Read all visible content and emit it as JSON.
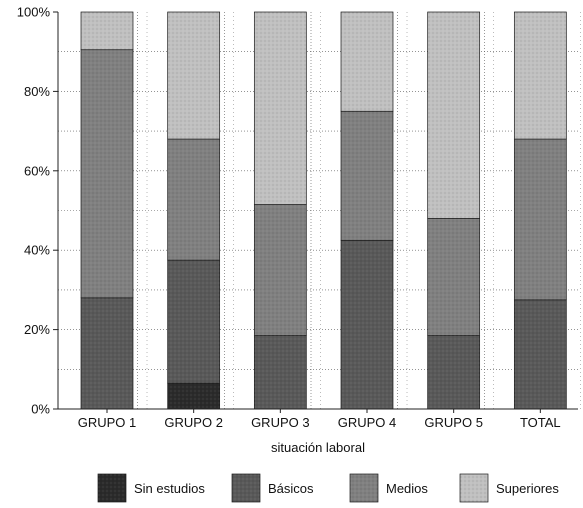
{
  "chart_data": {
    "type": "bar",
    "stacked": true,
    "percent_stacked": true,
    "title": "",
    "xlabel": "situación laboral",
    "ylabel": "",
    "categories": [
      "GRUPO 1",
      "GRUPO 2",
      "GRUPO 3",
      "GRUPO 4",
      "GRUPO 5",
      "TOTAL"
    ],
    "ylim": [
      0,
      100
    ],
    "y_ticks": [
      0,
      20,
      40,
      60,
      80,
      100
    ],
    "y_tick_labels": [
      "0%",
      "20%",
      "40%",
      "60%",
      "80%",
      "100%"
    ],
    "grid": true,
    "legend_position": "bottom",
    "series": [
      {
        "name": "Sin estudios",
        "color": "#2b2b2b",
        "values": [
          0,
          6.5,
          0,
          0,
          0,
          0
        ]
      },
      {
        "name": "Básicos",
        "color": "#595959",
        "values": [
          28,
          31,
          18.5,
          42.5,
          18.5,
          27.5
        ]
      },
      {
        "name": "Medios",
        "color": "#808080",
        "values": [
          62.5,
          30.5,
          33,
          32.5,
          29.5,
          40.5
        ]
      },
      {
        "name": "Superiores",
        "color": "#c0c0c0",
        "values": [
          9.5,
          32,
          48.5,
          25,
          52,
          32
        ]
      }
    ]
  }
}
